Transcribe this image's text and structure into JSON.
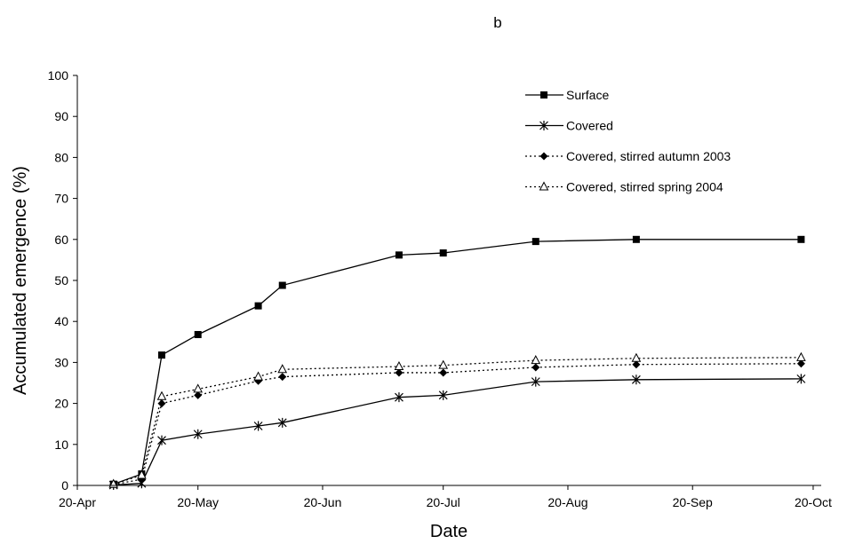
{
  "chart_data": {
    "type": "line",
    "title": "b",
    "xlabel": "Date",
    "ylabel": "Accumulated emergence (%)",
    "ylim": [
      0,
      100
    ],
    "yticks": [
      0,
      10,
      20,
      30,
      40,
      50,
      60,
      70,
      80,
      90,
      100
    ],
    "xlim": [
      "2004-04-20",
      "2004-10-22"
    ],
    "xticks": [
      {
        "date": "2004-04-20",
        "label": "20-Apr"
      },
      {
        "date": "2004-05-20",
        "label": "20-May"
      },
      {
        "date": "2004-06-20",
        "label": "20-Jun"
      },
      {
        "date": "2004-07-20",
        "label": "20-Jul"
      },
      {
        "date": "2004-08-20",
        "label": "20-Aug"
      },
      {
        "date": "2004-09-20",
        "label": "20-Sep"
      },
      {
        "date": "2004-10-20",
        "label": "20-Oct"
      }
    ],
    "grid": false,
    "legend_position": "top-right",
    "series": [
      {
        "name": "Surface",
        "marker": "square",
        "line": "solid",
        "color": "#000000",
        "points": [
          [
            "2004-04-29",
            0.3
          ],
          [
            "2004-05-06",
            2.8
          ],
          [
            "2004-05-11",
            31.8
          ],
          [
            "2004-05-20",
            36.8
          ],
          [
            "2004-06-04",
            43.8
          ],
          [
            "2004-06-10",
            48.8
          ],
          [
            "2004-07-09",
            56.2
          ],
          [
            "2004-07-20",
            56.7
          ],
          [
            "2004-08-12",
            59.5
          ],
          [
            "2004-09-06",
            60.0
          ],
          [
            "2004-10-17",
            60.0
          ]
        ]
      },
      {
        "name": "Covered",
        "marker": "asterisk",
        "line": "solid",
        "color": "#000000",
        "points": [
          [
            "2004-04-29",
            0.1
          ],
          [
            "2004-05-06",
            0.5
          ],
          [
            "2004-05-11",
            11.0
          ],
          [
            "2004-05-20",
            12.5
          ],
          [
            "2004-06-04",
            14.5
          ],
          [
            "2004-06-10",
            15.3
          ],
          [
            "2004-07-09",
            21.5
          ],
          [
            "2004-07-20",
            22.0
          ],
          [
            "2004-08-12",
            25.3
          ],
          [
            "2004-09-06",
            25.8
          ],
          [
            "2004-10-17",
            26.0
          ]
        ]
      },
      {
        "name": "Covered, stirred autumn 2003",
        "marker": "diamond",
        "line": "dotted",
        "color": "#000000",
        "points": [
          [
            "2004-04-29",
            0.2
          ],
          [
            "2004-05-06",
            1.5
          ],
          [
            "2004-05-11",
            20.0
          ],
          [
            "2004-05-20",
            22.0
          ],
          [
            "2004-06-04",
            25.5
          ],
          [
            "2004-06-10",
            26.5
          ],
          [
            "2004-07-09",
            27.5
          ],
          [
            "2004-07-20",
            27.5
          ],
          [
            "2004-08-12",
            28.8
          ],
          [
            "2004-09-06",
            29.5
          ],
          [
            "2004-10-17",
            29.7
          ]
        ]
      },
      {
        "name": "Covered, stirred spring 2004",
        "marker": "triangle-open",
        "line": "dotted",
        "color": "#000000",
        "points": [
          [
            "2004-04-29",
            0.3
          ],
          [
            "2004-05-06",
            2.5
          ],
          [
            "2004-05-11",
            21.7
          ],
          [
            "2004-05-20",
            23.5
          ],
          [
            "2004-06-04",
            26.5
          ],
          [
            "2004-06-10",
            28.3
          ],
          [
            "2004-07-09",
            29.0
          ],
          [
            "2004-07-20",
            29.3
          ],
          [
            "2004-08-12",
            30.5
          ],
          [
            "2004-09-06",
            31.0
          ],
          [
            "2004-10-17",
            31.2
          ]
        ]
      }
    ]
  }
}
